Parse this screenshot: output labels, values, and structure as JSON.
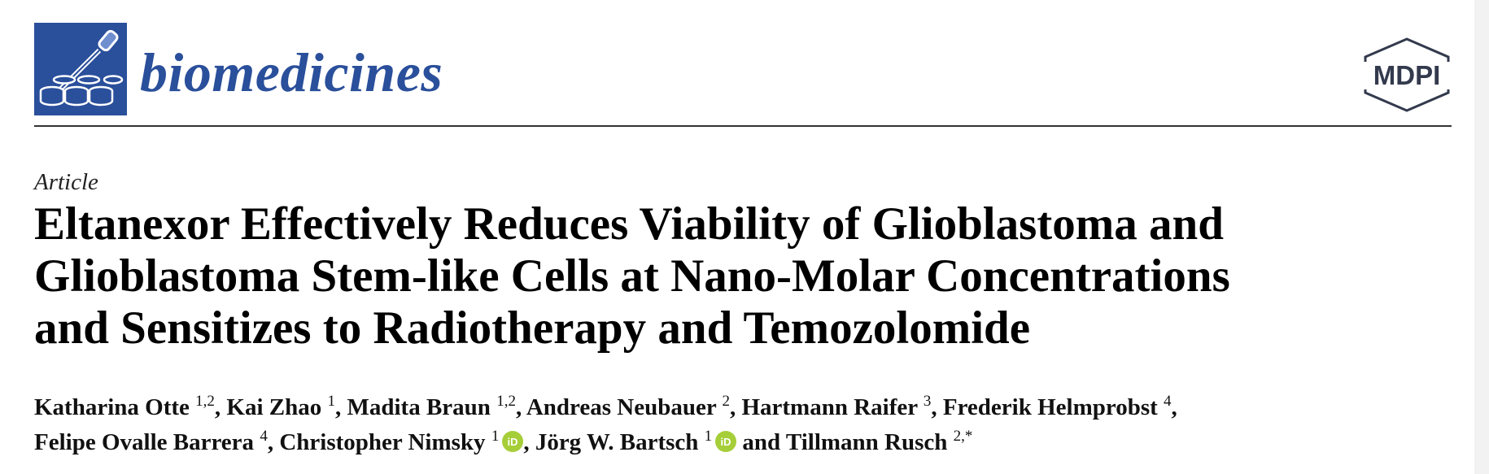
{
  "header": {
    "journal_name": "biomedicines",
    "publisher_text": "MDPI",
    "colors": {
      "journal_blue": "#2a4f9b",
      "orcid_green": "#a6ce39",
      "rule": "#333333"
    },
    "icons": {
      "journal_logo": "pipette-and-wells-icon",
      "publisher_logo": "mdpi-hexagon-logo",
      "orcid": "orcid-icon"
    }
  },
  "article": {
    "type": "Article",
    "title_lines": [
      "Eltanexor Effectively Reduces Viability of Glioblastoma and",
      "Glioblastoma Stem-like Cells at Nano-Molar Concentrations",
      "and Sensitizes to Radiotherapy and Temozolomide"
    ]
  },
  "authors": {
    "line1": [
      {
        "name": "Katharina Otte",
        "aff": "1,2",
        "sep": ", "
      },
      {
        "name": "Kai Zhao",
        "aff": "1",
        "sep": ", "
      },
      {
        "name": "Madita Braun",
        "aff": "1,2",
        "sep": ", "
      },
      {
        "name": "Andreas Neubauer",
        "aff": "2",
        "sep": ", "
      },
      {
        "name": "Hartmann Raifer",
        "aff": "3",
        "sep": ", "
      },
      {
        "name": "Frederik Helmprobst",
        "aff": "4",
        "sep": ","
      }
    ],
    "line2": [
      {
        "name": "Felipe Ovalle Barrera",
        "aff": "4",
        "sep": ", "
      },
      {
        "name": "Christopher Nimsky",
        "aff": "1",
        "sep": ", "
      },
      {
        "name": "Jörg W. Bartsch",
        "aff": "1",
        "sep": " and "
      },
      {
        "name": "Tillmann Rusch",
        "aff": "2,*",
        "sep": ""
      }
    ]
  }
}
